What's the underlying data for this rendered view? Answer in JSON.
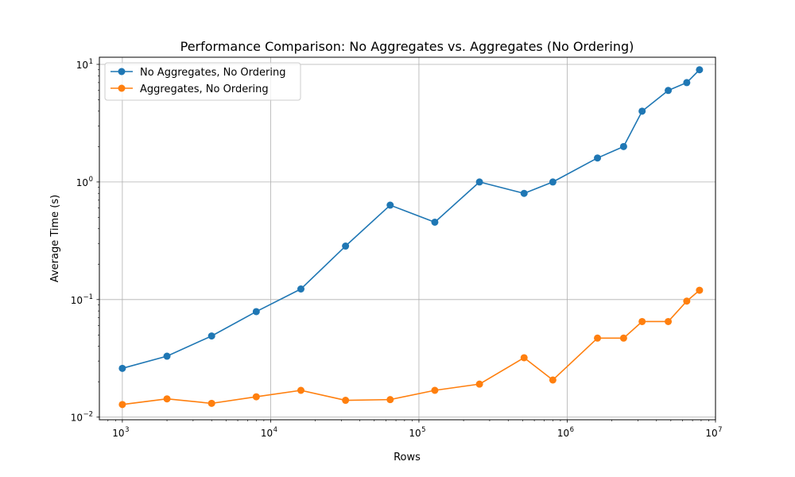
{
  "chart_data": {
    "type": "line",
    "title": "Performance Comparison: No Aggregates vs. Aggregates (No Ordering)",
    "xlabel": "Rows",
    "ylabel": "Average Time (s)",
    "xscale": "log",
    "yscale": "log",
    "xlim": [
      700,
      10000000
    ],
    "ylim": [
      0.0095,
      11.5
    ],
    "grid": true,
    "legend_position": "top-left",
    "x_ticks": [
      {
        "value": 1000,
        "base": "10",
        "exp": "3"
      },
      {
        "value": 10000,
        "base": "10",
        "exp": "4"
      },
      {
        "value": 100000,
        "base": "10",
        "exp": "5"
      },
      {
        "value": 1000000,
        "base": "10",
        "exp": "6"
      },
      {
        "value": 10000000,
        "base": "10",
        "exp": "7"
      }
    ],
    "y_ticks": [
      {
        "value": 0.01,
        "base": "10",
        "exp": "−2"
      },
      {
        "value": 0.1,
        "base": "10",
        "exp": "−1"
      },
      {
        "value": 1,
        "base": "10",
        "exp": "0"
      },
      {
        "value": 10,
        "base": "10",
        "exp": "1"
      }
    ],
    "x": [
      1000,
      2000,
      4000,
      8000,
      16000,
      32000,
      64000,
      128000,
      256000,
      512000,
      800000,
      1600000,
      2400000,
      3200000,
      4800000,
      6400000,
      7800000
    ],
    "series": [
      {
        "name": "No Aggregates, No Ordering",
        "color": "#1f77b4",
        "values": [
          0.026,
          0.033,
          0.049,
          0.079,
          0.123,
          0.285,
          0.635,
          0.455,
          1.0,
          0.8,
          1.0,
          1.6,
          2.0,
          4.0,
          6.0,
          7.0,
          9.0
        ]
      },
      {
        "name": "Aggregates, No Ordering",
        "color": "#ff7f0e",
        "values": [
          0.0128,
          0.0143,
          0.0131,
          0.0149,
          0.0169,
          0.0139,
          0.0141,
          0.0169,
          0.0191,
          0.032,
          0.0207,
          0.047,
          0.047,
          0.065,
          0.065,
          0.097,
          0.12
        ]
      }
    ]
  }
}
